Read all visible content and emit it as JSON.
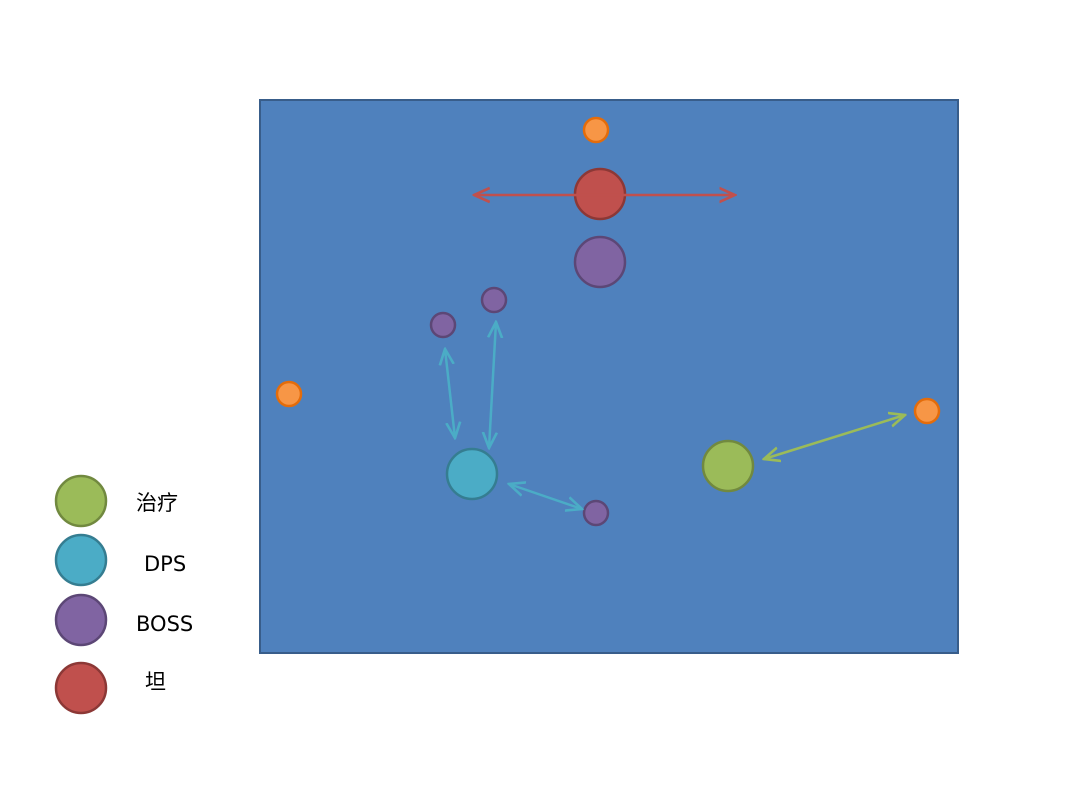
{
  "legend": {
    "items": [
      {
        "label": "治疗"
      },
      {
        "label": "DPS"
      },
      {
        "label": "BOSS"
      },
      {
        "label": "坦"
      }
    ]
  }
}
